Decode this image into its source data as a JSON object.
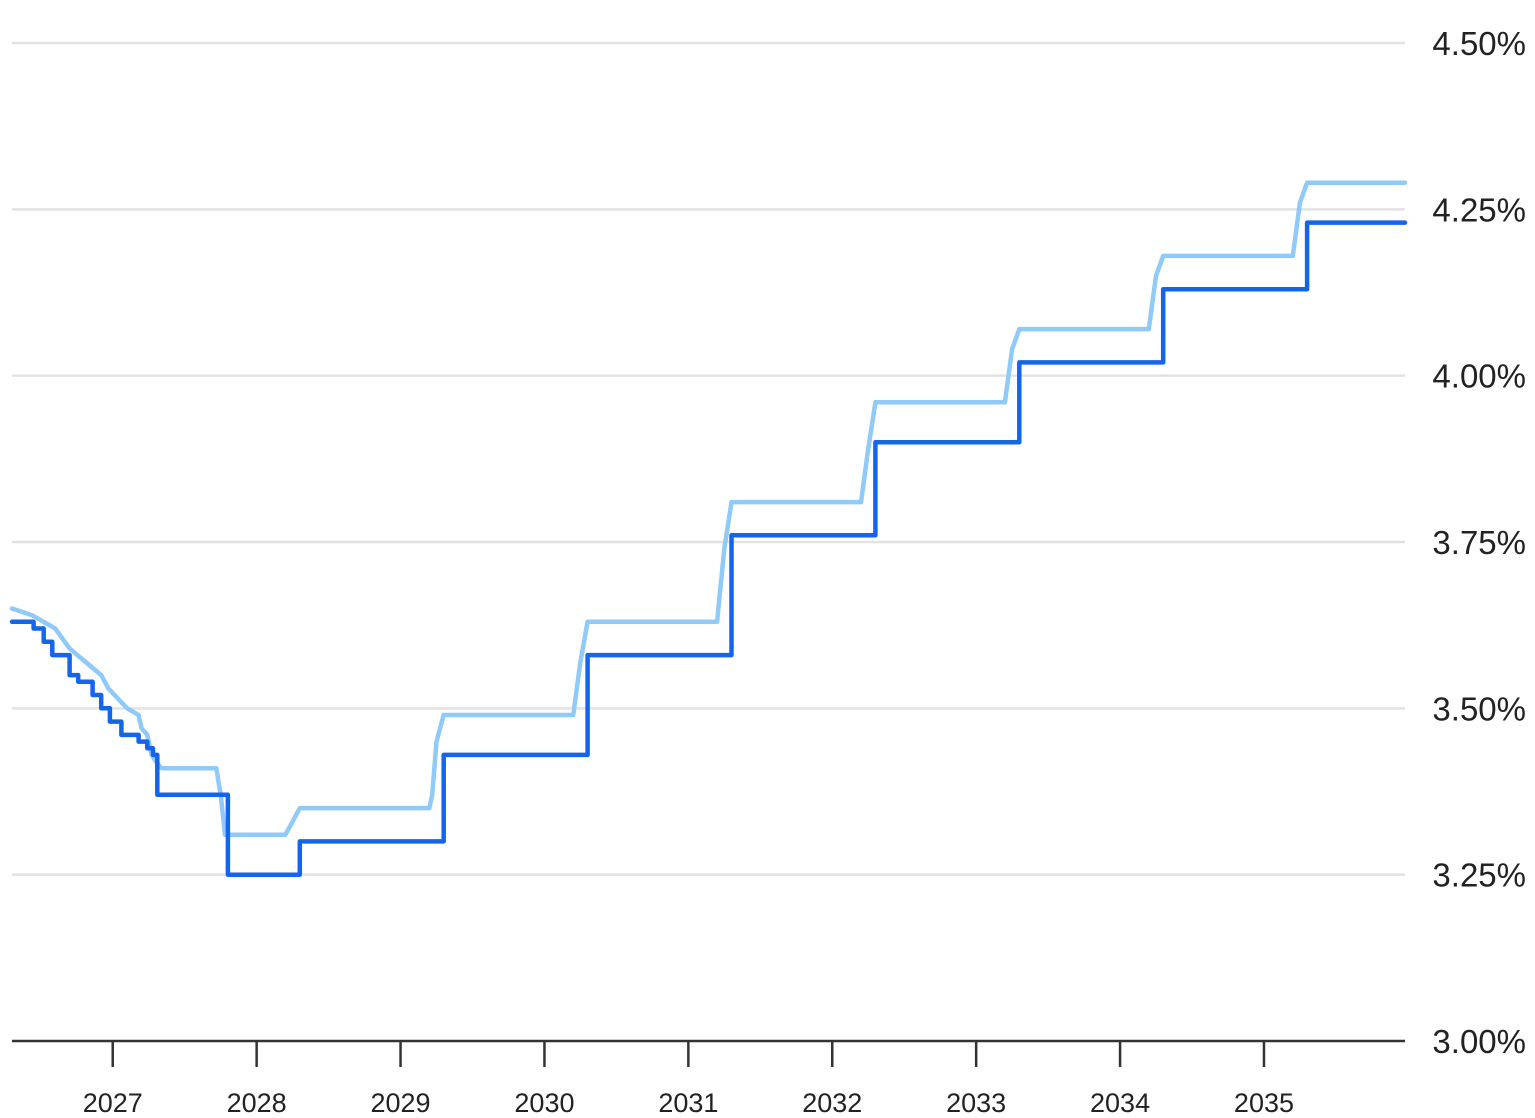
{
  "chart_data": {
    "type": "line",
    "title": "",
    "xlabel": "",
    "ylabel": "",
    "ylim": [
      3.0,
      4.5
    ],
    "xlim": [
      2026.3,
      2035.98
    ],
    "y_ticks": [
      3.0,
      3.25,
      3.5,
      3.75,
      4.0,
      4.25,
      4.5
    ],
    "y_tick_labels": [
      "3.00%",
      "3.25%",
      "3.50%",
      "3.75%",
      "4.00%",
      "4.25%",
      "4.50%"
    ],
    "x_ticks": [
      2027,
      2028,
      2029,
      2030,
      2031,
      2032,
      2033,
      2034,
      2035
    ],
    "x_tick_labels": [
      "2027",
      "2028",
      "2029",
      "2030",
      "2031",
      "2032",
      "2033",
      "2034",
      "2035"
    ],
    "grid": true,
    "legend": "none",
    "series": [
      {
        "color": "#90caf9",
        "x": [
          2026.3,
          2026.44,
          2026.6,
          2026.7,
          2026.92,
          2026.97,
          2027.1,
          2027.18,
          2027.2,
          2027.24,
          2027.27,
          2027.3,
          2027.34,
          2027.38,
          2027.4,
          2027.72,
          2027.75,
          2027.78,
          2028.2,
          2028.25,
          2028.3,
          2029.2,
          2029.22,
          2029.25,
          2029.3,
          2030.2,
          2030.25,
          2030.3,
          2031.2,
          2031.25,
          2031.3,
          2032.2,
          2032.25,
          2032.3,
          2033.2,
          2033.25,
          2033.3,
          2034.2,
          2034.25,
          2034.3,
          2035.2,
          2035.25,
          2035.3,
          2035.98
        ],
        "values": [
          3.65,
          3.64,
          3.62,
          3.59,
          3.55,
          3.53,
          3.5,
          3.49,
          3.47,
          3.46,
          3.43,
          3.42,
          3.41,
          3.41,
          3.41,
          3.41,
          3.37,
          3.31,
          3.31,
          3.33,
          3.35,
          3.35,
          3.37,
          3.45,
          3.49,
          3.49,
          3.57,
          3.63,
          3.63,
          3.74,
          3.81,
          3.81,
          3.89,
          3.96,
          3.96,
          4.04,
          4.07,
          4.07,
          4.15,
          4.18,
          4.18,
          4.26,
          4.29,
          4.29
        ]
      },
      {
        "color": "#1565e8",
        "x": [
          2026.3,
          2026.45,
          2026.45,
          2026.52,
          2026.52,
          2026.58,
          2026.58,
          2026.7,
          2026.7,
          2026.76,
          2026.76,
          2026.86,
          2026.86,
          2026.92,
          2026.92,
          2026.98,
          2026.98,
          2027.06,
          2027.06,
          2027.18,
          2027.18,
          2027.24,
          2027.24,
          2027.28,
          2027.28,
          2027.31,
          2027.31,
          2027.8,
          2027.8,
          2028.3,
          2028.3,
          2029.3,
          2029.3,
          2030.3,
          2030.3,
          2031.3,
          2031.3,
          2032.3,
          2032.3,
          2033.3,
          2033.3,
          2034.3,
          2034.3,
          2035.3,
          2035.3,
          2035.98
        ],
        "values": [
          3.63,
          3.63,
          3.62,
          3.62,
          3.6,
          3.6,
          3.58,
          3.58,
          3.55,
          3.55,
          3.54,
          3.54,
          3.52,
          3.52,
          3.5,
          3.5,
          3.48,
          3.48,
          3.46,
          3.46,
          3.45,
          3.45,
          3.44,
          3.44,
          3.43,
          3.43,
          3.37,
          3.37,
          3.25,
          3.25,
          3.3,
          3.3,
          3.43,
          3.43,
          3.58,
          3.58,
          3.76,
          3.76,
          3.9,
          3.9,
          4.02,
          4.02,
          4.13,
          4.13,
          4.23,
          4.23
        ]
      }
    ]
  }
}
